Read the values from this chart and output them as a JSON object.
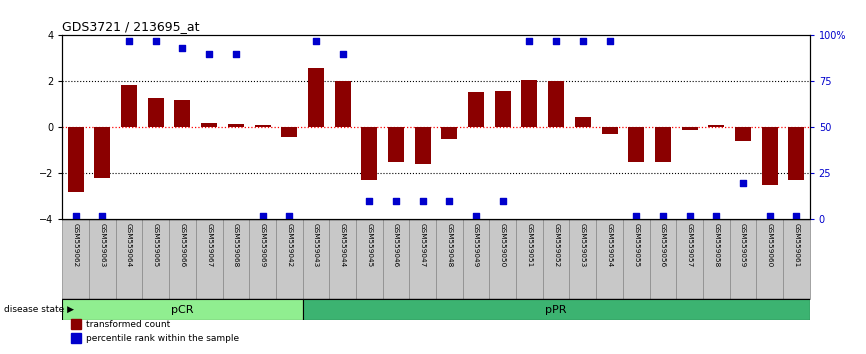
{
  "title": "GDS3721 / 213695_at",
  "samples": [
    "GSM559062",
    "GSM559063",
    "GSM559064",
    "GSM559065",
    "GSM559066",
    "GSM559067",
    "GSM559068",
    "GSM559069",
    "GSM559042",
    "GSM559043",
    "GSM559044",
    "GSM559045",
    "GSM559046",
    "GSM559047",
    "GSM559048",
    "GSM559049",
    "GSM559050",
    "GSM559051",
    "GSM559052",
    "GSM559053",
    "GSM559054",
    "GSM559055",
    "GSM559056",
    "GSM559057",
    "GSM559058",
    "GSM559059",
    "GSM559060",
    "GSM559061"
  ],
  "bar_values": [
    -2.8,
    -2.2,
    1.85,
    1.3,
    1.2,
    0.2,
    0.15,
    0.1,
    -0.4,
    2.6,
    2.0,
    -2.3,
    -1.5,
    -1.6,
    -0.5,
    1.55,
    1.6,
    2.05,
    2.0,
    0.45,
    -0.3,
    -1.5,
    -1.5,
    -0.1,
    0.1,
    -0.6,
    -2.5,
    -2.3
  ],
  "percentile_values": [
    2,
    2,
    97,
    97,
    93,
    90,
    90,
    2,
    2,
    97,
    90,
    10,
    10,
    10,
    10,
    2,
    10,
    97,
    97,
    97,
    97,
    2,
    2,
    2,
    2,
    20,
    2,
    2
  ],
  "pCR_count": 9,
  "bar_color": "#8B0000",
  "dot_color": "#0000CC",
  "pCR_color": "#90EE90",
  "pPR_color": "#3CB371",
  "ylim": [
    -4,
    4
  ],
  "y2lim": [
    0,
    100
  ],
  "yticks": [
    -4,
    -2,
    0,
    2,
    4
  ],
  "y2ticks": [
    0,
    25,
    50,
    75,
    100
  ],
  "y2ticklabels": [
    "0",
    "25",
    "50",
    "75",
    "100%"
  ],
  "label_bg_color": "#c8c8c8",
  "label_border_color": "#888888"
}
